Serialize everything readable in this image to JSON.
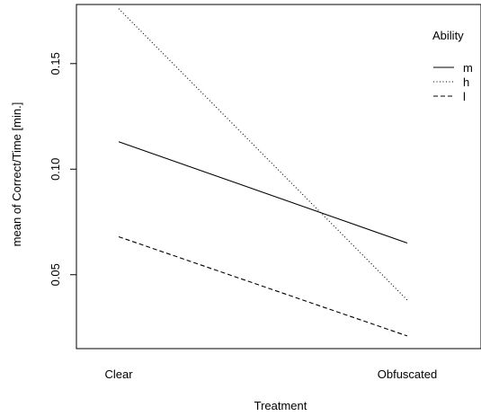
{
  "chart_data": {
    "type": "line",
    "title": "",
    "xlabel": "Treatment",
    "ylabel": "mean of Correct/Time [min.]",
    "categories": [
      "Clear",
      "Obfuscated"
    ],
    "yticks": [
      0.05,
      0.1,
      0.15
    ],
    "ytick_labels": [
      "0.05",
      "0.10",
      "0.15"
    ],
    "ylim": [
      0.015,
      0.178
    ],
    "grid": false,
    "legend": {
      "title": "Ability",
      "placement": "top-right"
    },
    "series": [
      {
        "name": "m",
        "values": [
          0.113,
          0.065
        ],
        "dash": "solid"
      },
      {
        "name": "h",
        "values": [
          0.176,
          0.038
        ],
        "dash": "dotted"
      },
      {
        "name": "l",
        "values": [
          0.068,
          0.021
        ],
        "dash": "dashed"
      }
    ]
  }
}
